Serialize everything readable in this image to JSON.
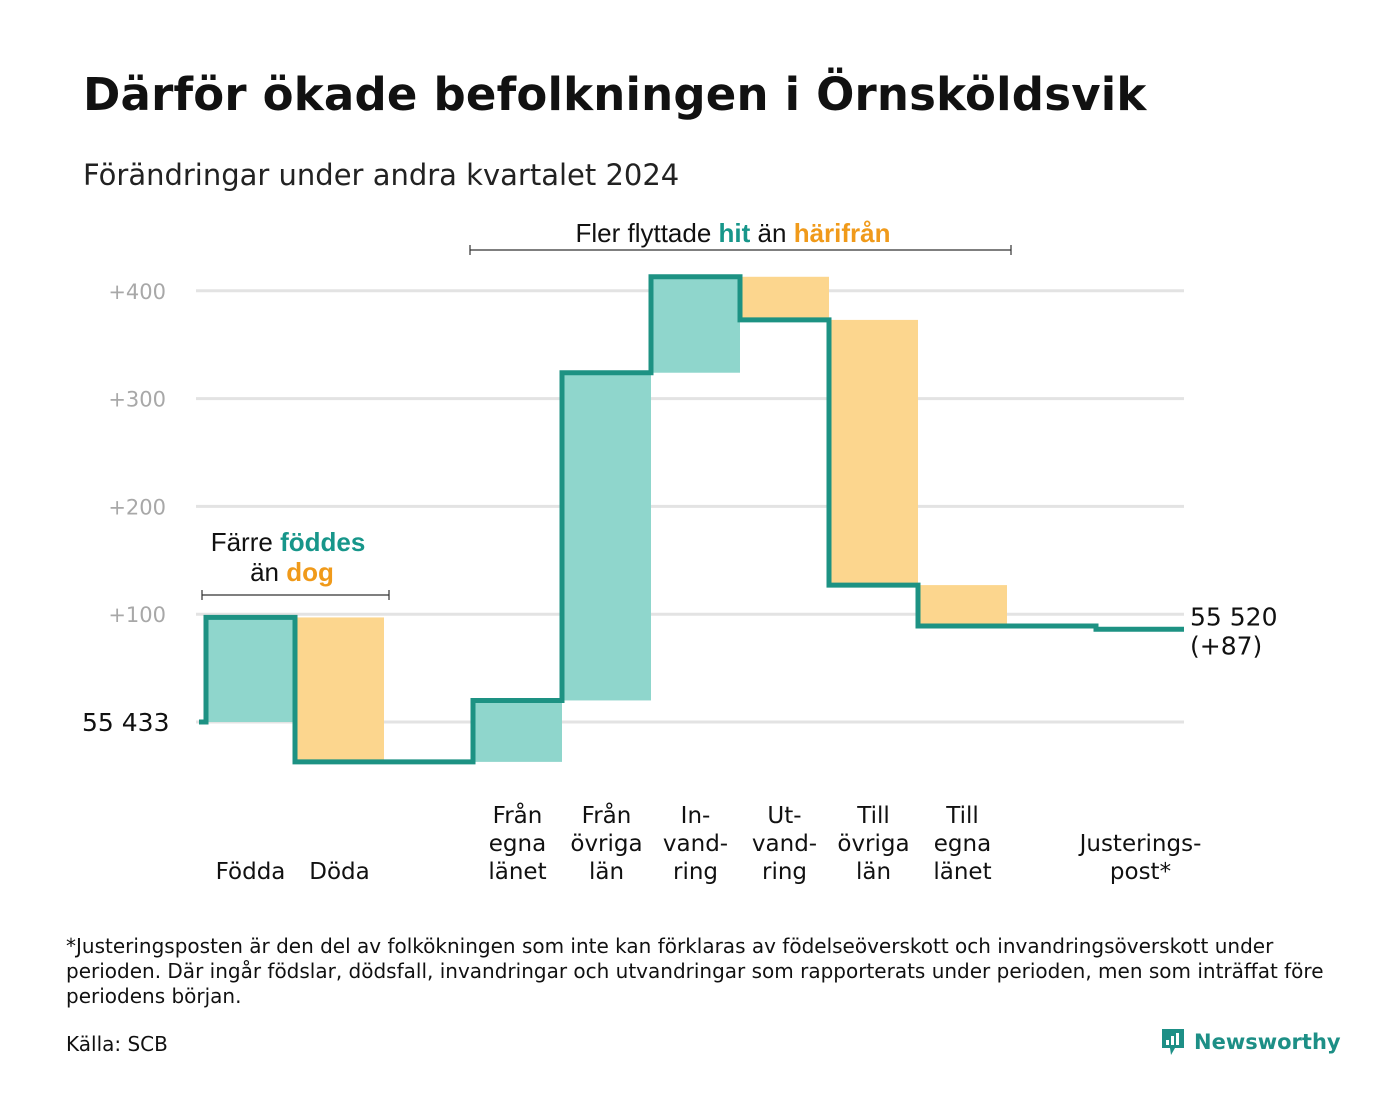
{
  "title": "Därför ökade befolkningen i Örnsköldsvik",
  "subtitle": "Förändringar under andra kvartalet 2024",
  "footnote": "*Justeringsposten är den del av folkökningen som inte kan förklaras av födelseöverskott och invandringsöverskott under perioden. Där ingår födslar, dödsfall, invandringar och utvandringar som rapporterats under perioden, men som inträffat före periodens början.",
  "source": "Källa: SCB",
  "brand": "Newsworthy",
  "colors": {
    "increase": "#8fd6cc",
    "decrease": "#fcd68e",
    "line": "#1d9283",
    "grid": "#e3e3e3",
    "annotation_green": "#17968a",
    "annotation_orange": "#f09a1a"
  },
  "annotations": {
    "births": {
      "line1_prefix": "Färre",
      "line1_highlight": "föddes",
      "line2_prefix": "än",
      "line2_highlight": "dog"
    },
    "migration": {
      "prefix": "Fler flyttade",
      "highlight1": "hit",
      "middle": "än",
      "highlight2": "härifrån"
    }
  },
  "chart_data": {
    "type": "waterfall",
    "title": "Därför ökade befolkningen i Örnsköldsvik",
    "subtitle": "Förändringar under andra kvartalet 2024",
    "start_value": 55433,
    "start_label": "55  433",
    "end_value": 55520,
    "end_label_line1": "55 520",
    "end_label_line2": "(+87)",
    "yticks": [
      "+100",
      "+200",
      "+300",
      "+400"
    ],
    "ytick_values": [
      100,
      200,
      300,
      400
    ],
    "ylim": [
      -65,
      430
    ],
    "grid": true,
    "steps": [
      {
        "label": [
          "Födda"
        ],
        "change": 97
      },
      {
        "label": [
          "Döda"
        ],
        "change": -134
      },
      {
        "label": [],
        "change": 0
      },
      {
        "label": [
          "Från",
          "egna",
          "länet"
        ],
        "change": 57
      },
      {
        "label": [
          "Från",
          "övriga",
          "län"
        ],
        "change": 304
      },
      {
        "label": [
          "In-",
          "vand-",
          "ring"
        ],
        "change": 89
      },
      {
        "label": [
          "Ut-",
          "vand-",
          "ring"
        ],
        "change": -40
      },
      {
        "label": [
          "Till",
          "övriga",
          "län"
        ],
        "change": -246
      },
      {
        "label": [
          "Till",
          "egna",
          "länet"
        ],
        "change": -38
      },
      {
        "label": [],
        "change": 0
      },
      {
        "label": [
          "Justerings-",
          "post*"
        ],
        "change": -3
      }
    ]
  }
}
